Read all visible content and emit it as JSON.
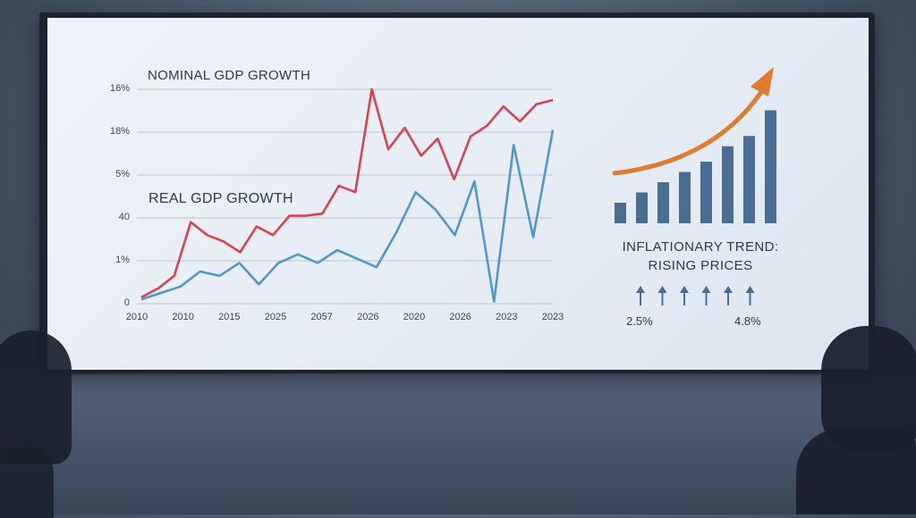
{
  "chart_data": [
    {
      "type": "line",
      "x_tick_labels": [
        "2010",
        "2010",
        "2015",
        "2025",
        "2057",
        "2026",
        "2020",
        "2026",
        "2023",
        "2023"
      ],
      "y_tick_labels": [
        "16%",
        "18%",
        "5%",
        "40",
        "1%",
        "0"
      ],
      "grid": true,
      "series": [
        {
          "name": "NOMINAL GDP GROWTH",
          "color": "#d9434f",
          "values": [
            0.3,
            0.7,
            1.3,
            3.8,
            3.2,
            2.9,
            2.4,
            3.6,
            3.2,
            4.1,
            4.1,
            4.2,
            5.5,
            5.2,
            10.0,
            7.2,
            8.2,
            6.9,
            7.7,
            5.8,
            7.8,
            8.3,
            9.2,
            8.5,
            9.3,
            9.5
          ]
        },
        {
          "name": "REAL GDP GROWTH",
          "color": "#4f97cf",
          "values": [
            0.2,
            0.5,
            0.8,
            1.5,
            1.3,
            1.9,
            0.9,
            1.9,
            2.3,
            1.9,
            2.5,
            2.1,
            1.7,
            3.3,
            5.2,
            4.4,
            3.2,
            5.7,
            0.1,
            7.4,
            3.1,
            8.1
          ]
        }
      ]
    },
    {
      "type": "bar",
      "values": [
        2,
        3,
        4,
        5,
        6,
        7.5,
        8.5,
        11
      ],
      "bar_color": "#4a6d96",
      "arrow_color": "#e07b2f"
    }
  ],
  "labels": {
    "nominal": "NOMINAL GDP GROWTH",
    "real": "REAL GDP GROWTH",
    "inflation_line1": "INFLATIONARY TREND:",
    "inflation_line2": "RISING PRICES",
    "infl_start": "2.5%",
    "infl_end": "4.8%"
  },
  "up_arrow_count": 6
}
